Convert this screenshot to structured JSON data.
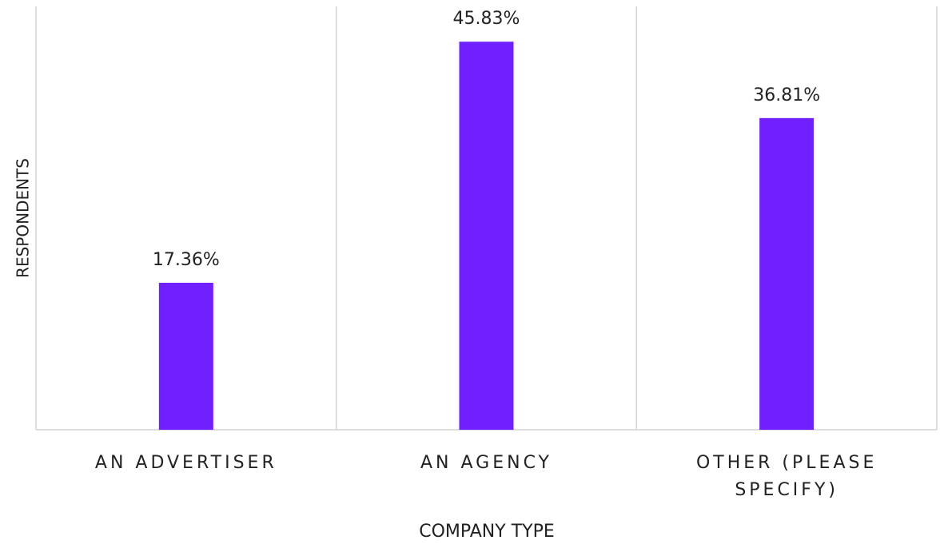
{
  "chart_data": {
    "type": "bar",
    "x_label": "COMPANY TYPE",
    "y_label": "RESPONDENTS",
    "categories": [
      "AN ADVERTISER",
      "AN AGENCY",
      "OTHER (PLEASE SPECIFY)"
    ],
    "values": [
      17.36,
      45.83,
      36.81
    ],
    "value_labels": [
      "17.36%",
      "45.83%",
      "36.81%"
    ],
    "color": "#7020ff",
    "ylim": [
      0,
      50
    ]
  }
}
